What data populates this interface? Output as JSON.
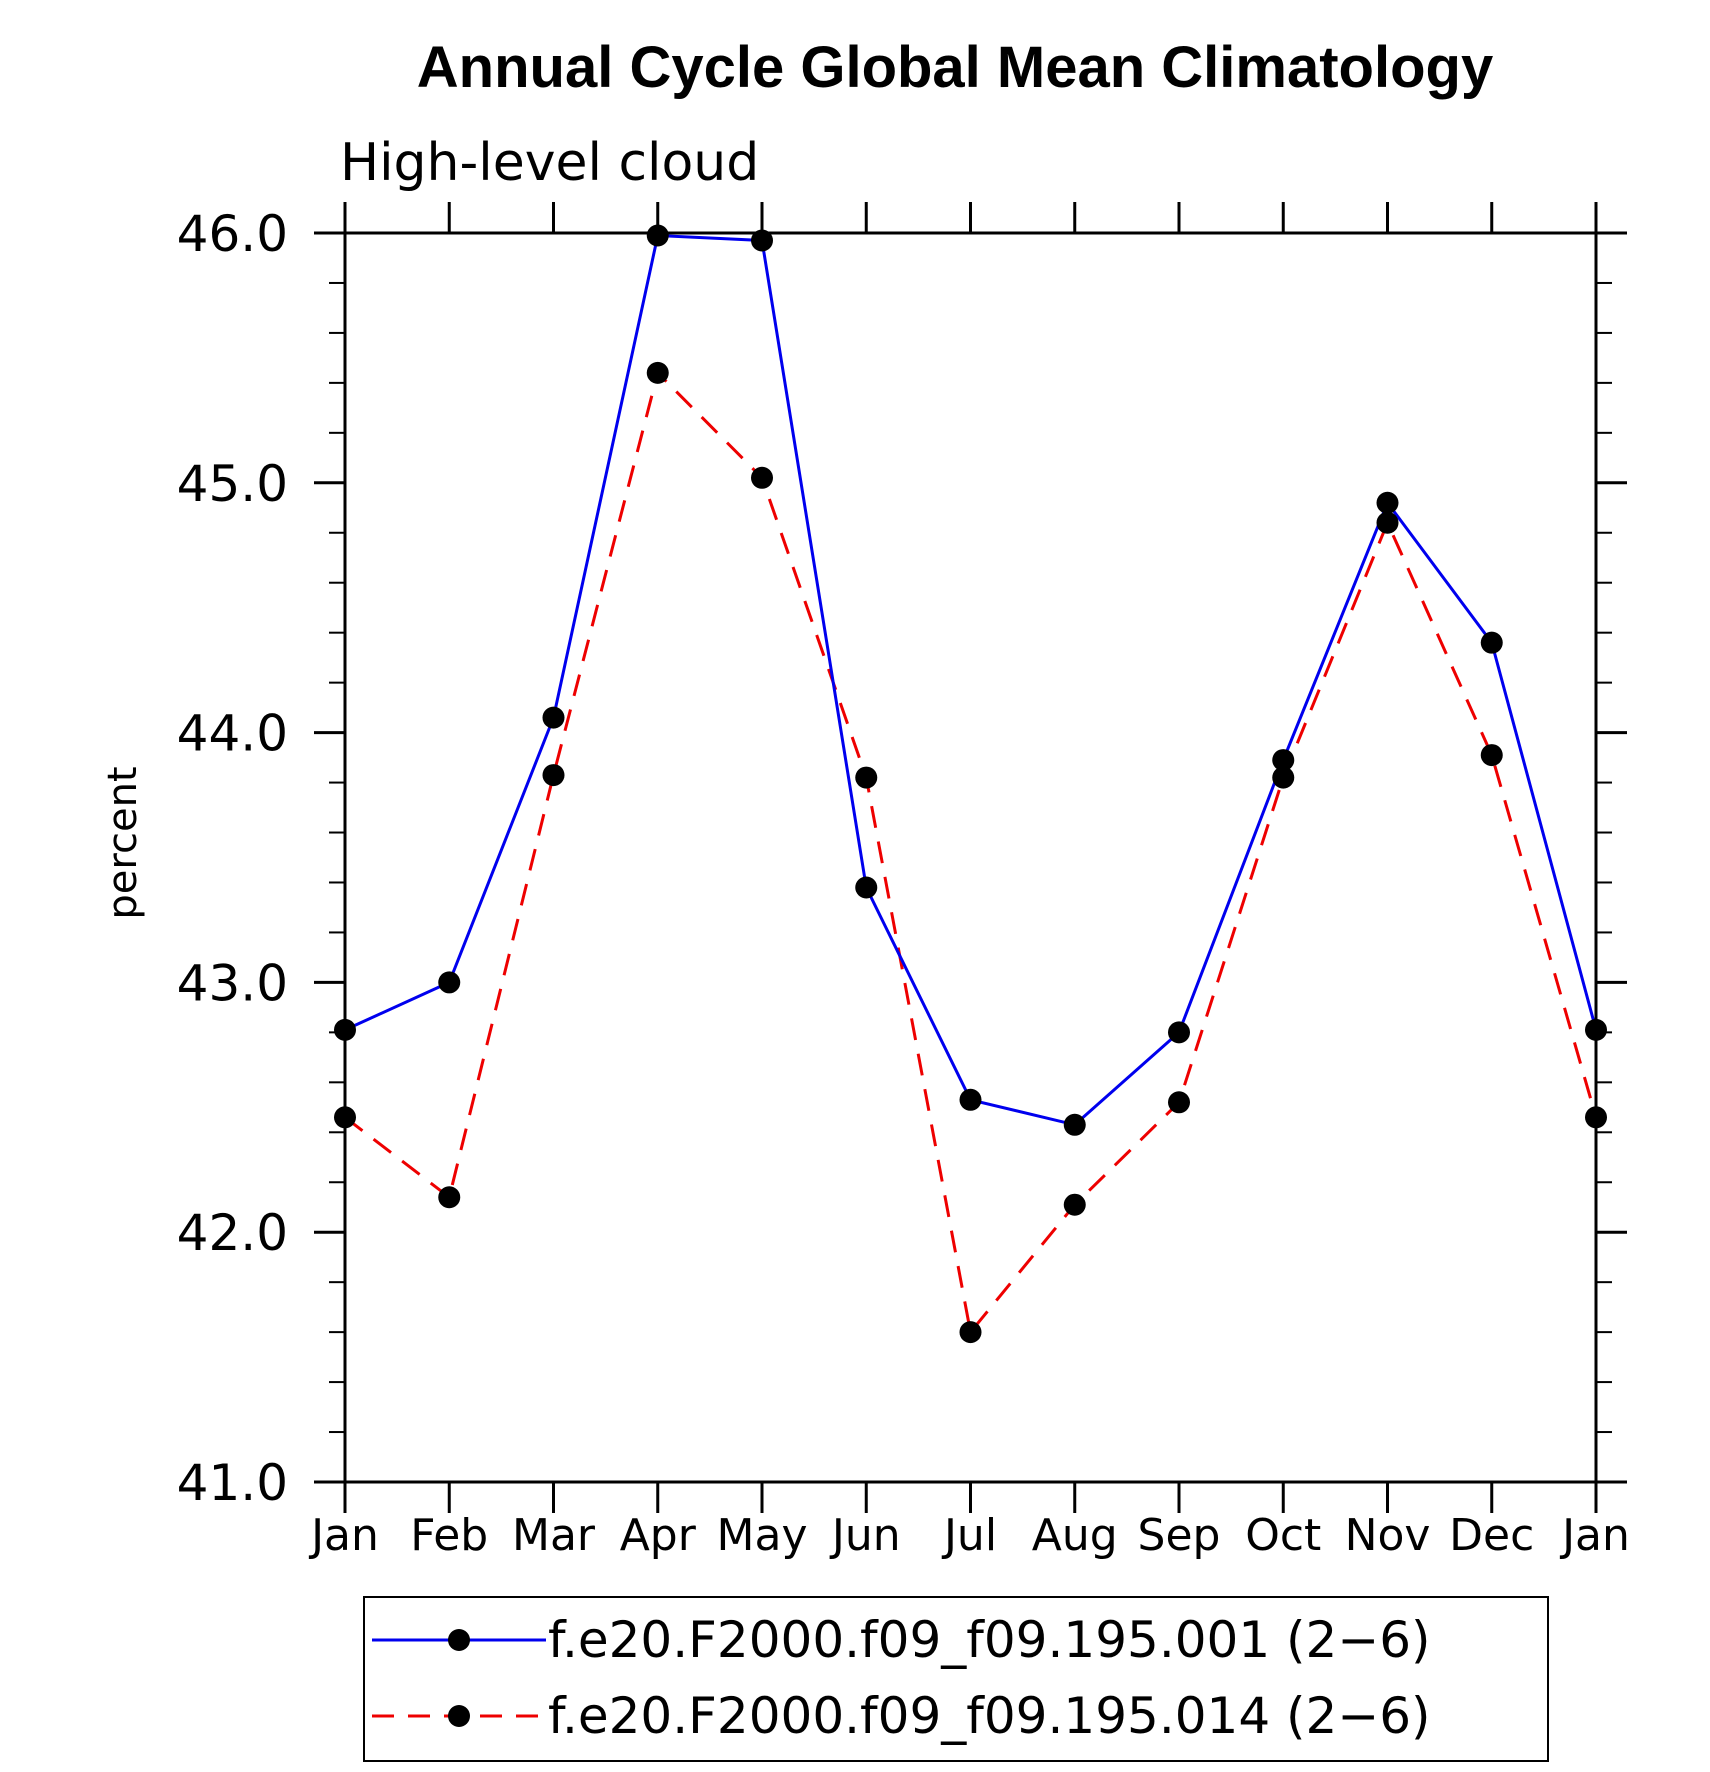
{
  "chart_data": {
    "type": "line",
    "title": "Annual Cycle Global Mean Climatology",
    "subtitle": "High-level cloud",
    "xlabel": "",
    "ylabel": "percent",
    "ylim": [
      41.0,
      46.0
    ],
    "y_ticks": [
      "41.0",
      "42.0",
      "43.0",
      "44.0",
      "45.0",
      "46.0"
    ],
    "y_tick_values": [
      41.0,
      42.0,
      43.0,
      44.0,
      45.0,
      46.0
    ],
    "y_minor_step": 0.2,
    "categories": [
      "Jan",
      "Feb",
      "Mar",
      "Apr",
      "May",
      "Jun",
      "Jul",
      "Aug",
      "Sep",
      "Oct",
      "Nov",
      "Dec",
      "Jan"
    ],
    "grid": false,
    "legend_position": "bottom",
    "series": [
      {
        "name": "f.e20.F2000.f09_f09.195.001 (2−6)",
        "color": "#0000ee",
        "dash": "solid",
        "values": [
          42.81,
          43.0,
          44.06,
          45.99,
          45.97,
          43.38,
          42.53,
          42.43,
          42.8,
          43.89,
          44.92,
          44.36,
          42.81
        ]
      },
      {
        "name": "f.e20.F2000.f09_f09.195.014 (2−6)",
        "color": "#ee0000",
        "dash": "dashed",
        "values": [
          42.46,
          42.14,
          43.83,
          45.44,
          45.02,
          43.82,
          41.6,
          42.11,
          42.52,
          43.82,
          44.84,
          43.91,
          42.46
        ]
      }
    ]
  }
}
